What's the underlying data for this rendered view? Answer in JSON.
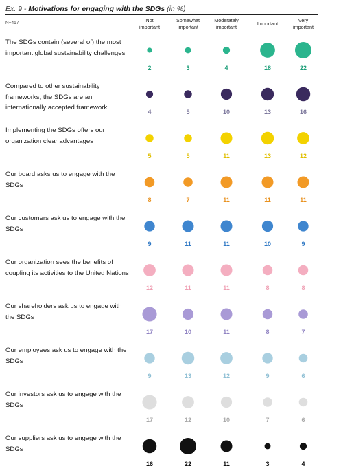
{
  "header": {
    "ex": "Ex. 9 - ",
    "title": "Motivations for engaging with the SDGs",
    "unit": " (in %)",
    "n": "N=417"
  },
  "chart_data": {
    "type": "bubble-matrix",
    "title": "Motivations for engaging with the SDGs",
    "unit": "%",
    "columns": [
      "Not important",
      "Somewhat important",
      "Moderately important",
      "Important",
      "Very important"
    ],
    "rows": [
      {
        "label": "The SDGs contain (several of) the most important global sustainability challenges",
        "values": [
          2,
          3,
          4,
          18,
          22
        ],
        "color": "#2bb58e",
        "label_color": "#1f9f7a"
      },
      {
        "label": "Compared to other sustainability frameworks, the SDGs are an internationally accepted framework",
        "values": [
          4,
          5,
          10,
          13,
          16
        ],
        "color": "#3a2a5e",
        "label_color": "#7a759a"
      },
      {
        "label": "Implementing the SDGs offers our organization clear advantages",
        "values": [
          5,
          5,
          11,
          13,
          12
        ],
        "color": "#f3d200",
        "label_color": "#e0bf00"
      },
      {
        "label": "Our board asks us to engage with the SDGs",
        "values": [
          8,
          7,
          11,
          11,
          11
        ],
        "color": "#f29a26",
        "label_color": "#e8911f"
      },
      {
        "label": "Our customers ask us to engage with the SDGs",
        "values": [
          9,
          11,
          11,
          10,
          9
        ],
        "color": "#3f86cf",
        "label_color": "#2f78c4"
      },
      {
        "label": "Our organization sees the benefits of coupling its activities to the United Nations",
        "values": [
          12,
          11,
          11,
          8,
          8
        ],
        "color": "#f4aec0",
        "label_color": "#ef9fb3"
      },
      {
        "label": "Our shareholders ask us to engage with the SDGs",
        "values": [
          17,
          10,
          11,
          8,
          7
        ],
        "color": "#a99ad6",
        "label_color": "#8f82c2"
      },
      {
        "label": "Our employees ask us to engage with the SDGs",
        "values": [
          9,
          13,
          12,
          9,
          6
        ],
        "color": "#a9cfe0",
        "label_color": "#8ebfd4"
      },
      {
        "label": "Our investors ask us to engage with the SDGs",
        "values": [
          17,
          12,
          10,
          7,
          6
        ],
        "color": "#dedede",
        "label_color": "#a9a9a9"
      },
      {
        "label": "Our suppliers ask us to engage with the SDGs",
        "values": [
          16,
          22,
          11,
          3,
          4
        ],
        "color": "#111111",
        "label_color": "#111111"
      }
    ]
  }
}
